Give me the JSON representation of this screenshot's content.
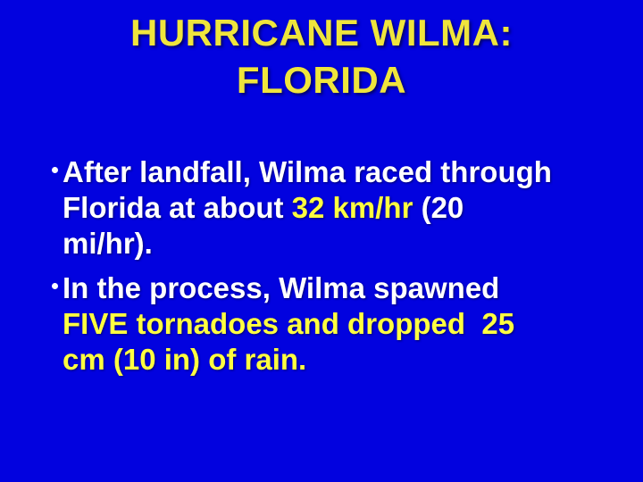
{
  "slide": {
    "colors": {
      "background": "#0202DF",
      "title": "#EFE53C",
      "body_white": "#FFFFFF",
      "body_yellow": "#FFFF40"
    },
    "title": {
      "text": "HURRICANE WILMA:\nFLORIDA"
    },
    "bullets": [
      {
        "runs": [
          {
            "style": "white",
            "text": "After landfall, Wilma raced through\nFlorida at about "
          },
          {
            "style": "yellow",
            "text": "32 km/hr"
          },
          {
            "style": "white",
            "text": " (20\nmi/hr)."
          }
        ]
      },
      {
        "runs": [
          {
            "style": "white",
            "text": "In the process, Wilma spawned\n"
          },
          {
            "style": "yellow",
            "text": "FIVE tornadoes and dropped  25\ncm (10 in) of rain."
          }
        ]
      }
    ]
  }
}
